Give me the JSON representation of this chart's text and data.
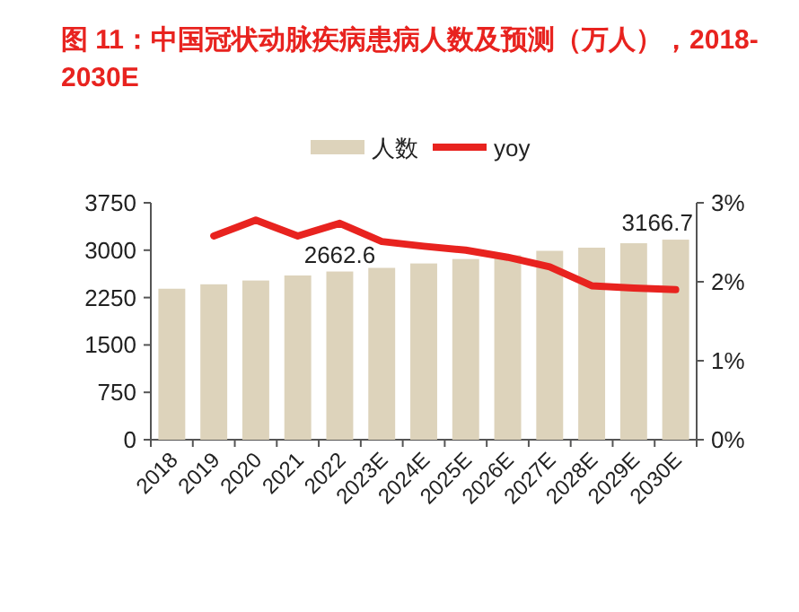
{
  "chart_data": {
    "type": "bar",
    "title": "图 11：中国冠状动脉疾病患病人数及预测（万人），2018-2030E",
    "categories": [
      "2018",
      "2019",
      "2020",
      "2021",
      "2022",
      "2023E",
      "2024E",
      "2025E",
      "2026E",
      "2027E",
      "2028E",
      "2029E",
      "2030E"
    ],
    "series": [
      {
        "name": "人数",
        "color": "#ddd3bb",
        "values": [
          2390,
          2460,
          2520,
          2600,
          2662.6,
          2720,
          2790,
          2860,
          2920,
          2990,
          3040,
          3110,
          3166.7
        ],
        "value_labels": [
          null,
          null,
          null,
          null,
          "2662.6",
          null,
          null,
          null,
          null,
          null,
          null,
          null,
          "3166.7"
        ]
      },
      {
        "name": "yoy",
        "type": "line",
        "axis": "y2",
        "color": "#e8231f",
        "values": [
          null,
          2.58,
          2.78,
          2.58,
          2.74,
          2.51,
          2.45,
          2.4,
          2.31,
          2.19,
          1.95,
          1.92,
          1.9
        ]
      }
    ],
    "ylim": [
      0,
      3750
    ],
    "yticks": [
      0,
      750,
      1500,
      2250,
      3000,
      3750
    ],
    "y2lim": [
      0,
      3
    ],
    "y2ticks": [
      {
        "value": 0,
        "label": "0%"
      },
      {
        "value": 1,
        "label": "1%"
      },
      {
        "value": 2,
        "label": "2%"
      },
      {
        "value": 3,
        "label": "3%"
      }
    ],
    "legend": "top",
    "grid": false
  }
}
